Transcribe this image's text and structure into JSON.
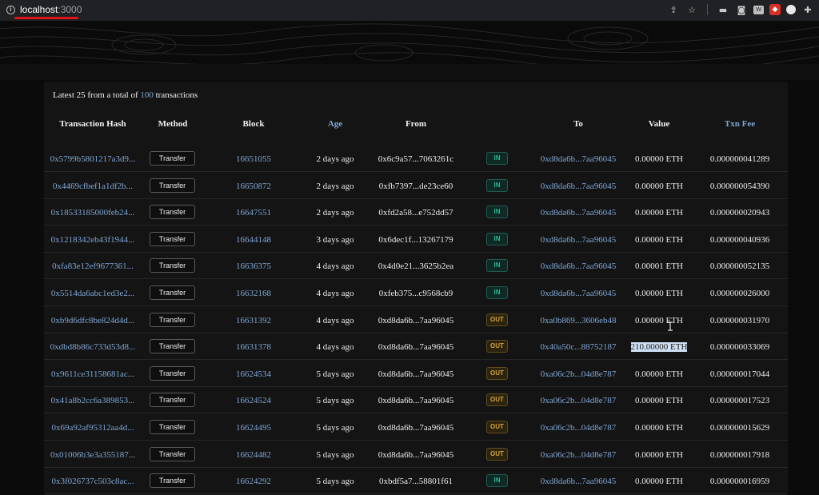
{
  "browser": {
    "host": "localhost",
    "port": ":3000",
    "info_glyph": "i"
  },
  "summary": {
    "prefix": "Latest 25 from a total of",
    "total": "100",
    "suffix": "transactions"
  },
  "columns": {
    "hash": "Transaction Hash",
    "method": "Method",
    "block": "Block",
    "age": "Age",
    "from": "From",
    "to": "To",
    "value": "Value",
    "fee": "Txn Fee"
  },
  "rows": [
    {
      "hash": "0x5799b5801217a3d9...",
      "method": "Transfer",
      "block": "16651055",
      "age": "2 days ago",
      "from": "0x6c9a57...7063261c",
      "dir": "IN",
      "to": "0xd8da6b...7aa96045",
      "value": "0.00000 ETH",
      "fee": "0.000000041289"
    },
    {
      "hash": "0x4469cfbef1a1df2b...",
      "method": "Transfer",
      "block": "16650872",
      "age": "2 days ago",
      "from": "0xfb7397...de23ce60",
      "dir": "IN",
      "to": "0xd8da6b...7aa96045",
      "value": "0.00000 ETH",
      "fee": "0.000000054390"
    },
    {
      "hash": "0x18533185000feb24...",
      "method": "Transfer",
      "block": "16647551",
      "age": "2 days ago",
      "from": "0xfd2a58...e752dd57",
      "dir": "IN",
      "to": "0xd8da6b...7aa96045",
      "value": "0.00000 ETH",
      "fee": "0.000000020943"
    },
    {
      "hash": "0x1218342eb43f1944...",
      "method": "Transfer",
      "block": "16644148",
      "age": "3 days ago",
      "from": "0x6dec1f...13267179",
      "dir": "IN",
      "to": "0xd8da6b...7aa96045",
      "value": "0.00000 ETH",
      "fee": "0.000000040936"
    },
    {
      "hash": "0xfa83e12ef9677361...",
      "method": "Transfer",
      "block": "16636375",
      "age": "4 days ago",
      "from": "0x4d0e21...3625b2ea",
      "dir": "IN",
      "to": "0xd8da6b...7aa96045",
      "value": "0.00001 ETH",
      "fee": "0.000000052135"
    },
    {
      "hash": "0x5514da6abc1ed3e2...",
      "method": "Transfer",
      "block": "16632168",
      "age": "4 days ago",
      "from": "0xfeb375...c9568cb9",
      "dir": "IN",
      "to": "0xd8da6b...7aa96045",
      "value": "0.00000 ETH",
      "fee": "0.000000026000"
    },
    {
      "hash": "0xb9d6dfc8be824d4d...",
      "method": "Transfer",
      "block": "16631392",
      "age": "4 days ago",
      "from": "0xd8da6b...7aa96045",
      "dir": "OUT",
      "to": "0xa0b869...3606eb48",
      "value": "0.00000 ETH",
      "fee": "0.000000031970"
    },
    {
      "hash": "0xdbd8b86c733d53d8...",
      "method": "Transfer",
      "block": "16631378",
      "age": "4 days ago",
      "from": "0xd8da6b...7aa96045",
      "dir": "OUT",
      "to": "0x40a50c...88752187",
      "value": "210.00000 ETH",
      "fee": "0.000000033069",
      "selected": true
    },
    {
      "hash": "0x9611ce31158681ac...",
      "method": "Transfer",
      "block": "16624534",
      "age": "5 days ago",
      "from": "0xd8da6b...7aa96045",
      "dir": "OUT",
      "to": "0xa06c2b...04d8e787",
      "value": "0.00000 ETH",
      "fee": "0.000000017044"
    },
    {
      "hash": "0x41a8b2cc6a389853...",
      "method": "Transfer",
      "block": "16624524",
      "age": "5 days ago",
      "from": "0xd8da6b...7aa96045",
      "dir": "OUT",
      "to": "0xa06c2b...04d8e787",
      "value": "0.00000 ETH",
      "fee": "0.000000017523"
    },
    {
      "hash": "0x69a92af95312aa4d...",
      "method": "Transfer",
      "block": "16624495",
      "age": "5 days ago",
      "from": "0xd8da6b...7aa96045",
      "dir": "OUT",
      "to": "0xa06c2b...04d8e787",
      "value": "0.00000 ETH",
      "fee": "0.000000015629"
    },
    {
      "hash": "0x01006b3e3a355187...",
      "method": "Transfer",
      "block": "16624482",
      "age": "5 days ago",
      "from": "0xd8da6b...7aa96045",
      "dir": "OUT",
      "to": "0xa06c2b...04d8e787",
      "value": "0.00000 ETH",
      "fee": "0.000000017918"
    },
    {
      "hash": "0x3f026737c503c8ac...",
      "method": "Transfer",
      "block": "16624292",
      "age": "5 days ago",
      "from": "0xbdf5a7...58801f61",
      "dir": "IN",
      "to": "0xd8da6b...7aa96045",
      "value": "0.00000 ETH",
      "fee": "0.000000016959"
    }
  ],
  "colors": {
    "link": "#7fa7d6",
    "in": "#2bb39a",
    "out": "#d4a33a"
  }
}
